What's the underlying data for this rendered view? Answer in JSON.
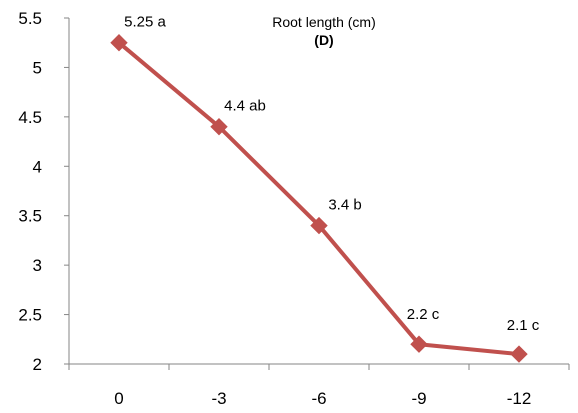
{
  "chart_data": {
    "type": "line",
    "title": "Root length (cm)",
    "subtitle": "(D)",
    "xlabel": "",
    "ylabel": "",
    "categories": [
      "0",
      "-3",
      "-6",
      "-9",
      "-12"
    ],
    "series": [
      {
        "values": [
          5.25,
          4.4,
          3.4,
          2.2,
          2.1
        ],
        "labels": [
          "5.25 a",
          "4.4 ab",
          "3.4 b",
          "2.2 c",
          "2.1 c"
        ],
        "color": "#C0504D",
        "marker": "diamond"
      }
    ],
    "ylim": [
      2,
      5.5
    ],
    "yticks": [
      "2",
      "2.5",
      "3",
      "3.5",
      "4",
      "4.5",
      "5",
      "5.5"
    ],
    "grid": false,
    "legend": "none"
  }
}
